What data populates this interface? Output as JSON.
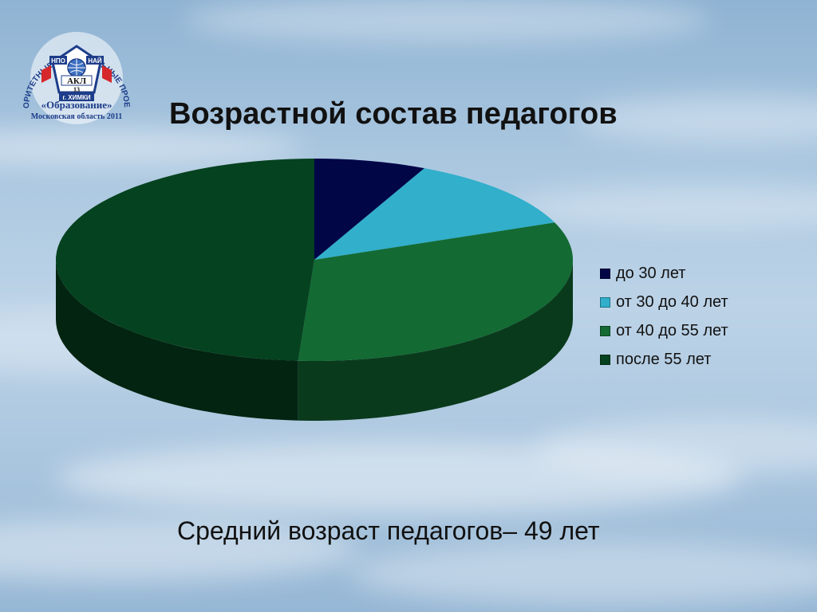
{
  "slide": {
    "title": "Возрастной состав педагогов",
    "footnote": "Средний возраст педагогов– 49 лет"
  },
  "logo": {
    "arc_text": "ПРИОРИТЕТНЫЕ НАЦИОНАЛЬНЫЕ ПРОЕКТЫ",
    "program": "«Образование»",
    "region": "Московская область 2011",
    "left_tag": "НПО",
    "right_tag": "НАЙ",
    "center_text": "АКЛ",
    "number": "13",
    "city": "г. ХИМКИ"
  },
  "chart_data": {
    "type": "pie",
    "title": "Возрастной состав педагогов",
    "style": "3d",
    "legend_position": "right",
    "categories": [
      "до 30 лет",
      "от 30 до 40 лет",
      "от 40 до 55 лет",
      "после 55 лет"
    ],
    "values": [
      7,
      12,
      32,
      49
    ],
    "colors": [
      "#010647",
      "#31afcb",
      "#136a33",
      "#05421f"
    ]
  }
}
